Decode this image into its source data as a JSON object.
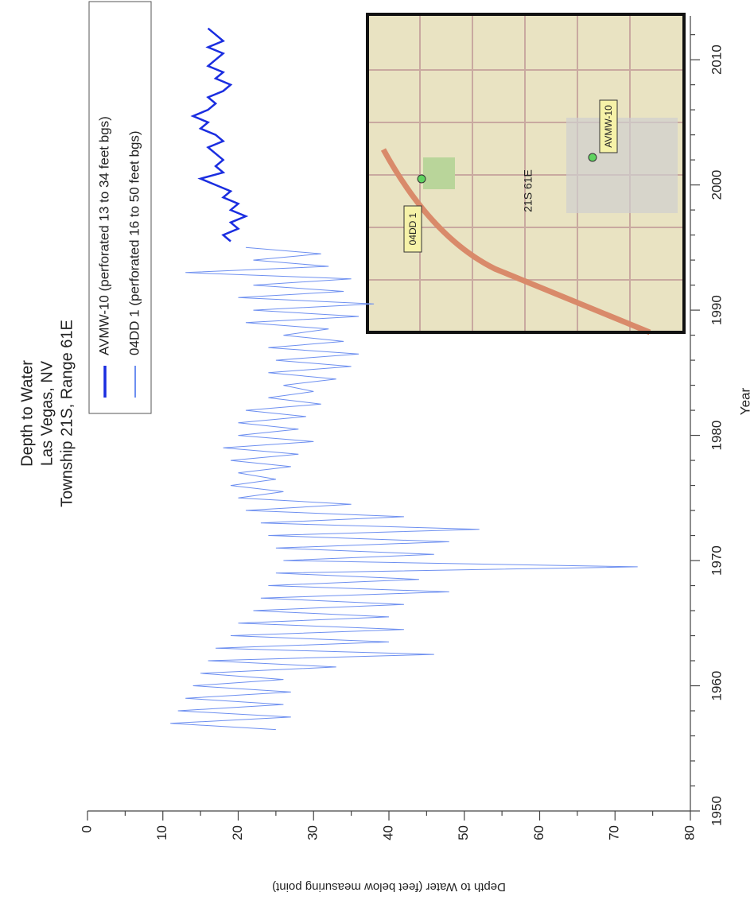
{
  "chart_data": {
    "type": "line",
    "title": [
      "Depth to Water",
      "Las Vegas, NV",
      "Township 21S, Range 61E"
    ],
    "xlabel": "Year",
    "ylabel": "Depth to Water (feet below measuring point)",
    "xlim": [
      1950,
      2013.5
    ],
    "xticks": [
      1950,
      1960,
      1970,
      1980,
      1990,
      2000,
      2010
    ],
    "xticks_minor": [
      1952,
      1954,
      1956,
      1958,
      1962,
      1964,
      1966,
      1968,
      1972,
      1974,
      1976,
      1978,
      1982,
      1984,
      1986,
      1988,
      1992,
      1994,
      1996,
      1998,
      2002,
      2004,
      2006,
      2008,
      2012
    ],
    "ylim": [
      0,
      80
    ],
    "yticks": [
      0,
      10,
      20,
      30,
      40,
      50,
      60,
      70,
      80
    ],
    "yticks_minor": [
      5,
      15,
      25,
      35,
      45,
      55,
      65,
      75
    ],
    "y_inverted": true,
    "series": [
      {
        "name": "AVMW-10 (perforated 13 to 34 feet bgs)",
        "color": "#1a2de0",
        "width": 2.5,
        "x": [
          1995.5,
          1996,
          1996.5,
          1997,
          1997.5,
          1998,
          1998.5,
          1999,
          1999.5,
          2000,
          2000.5,
          2001,
          2001.5,
          2002,
          2002.5,
          2003,
          2003.5,
          2004,
          2004.5,
          2005,
          2005.5,
          2006,
          2006.5,
          2007,
          2007.5,
          2008,
          2008.5,
          2009,
          2009.5,
          2010,
          2010.5,
          2011,
          2011.5,
          2012,
          2012.5
        ],
        "values": [
          19,
          18,
          20,
          19,
          21,
          19,
          20,
          18,
          19,
          17,
          15,
          18,
          17,
          18,
          17,
          16,
          18,
          17,
          15,
          16,
          14,
          16,
          17,
          16,
          18,
          19,
          17,
          18,
          16,
          17,
          18,
          16,
          18,
          17,
          16
        ]
      },
      {
        "name": "04DD 1 (perforated 16 to 50 feet bgs)",
        "color": "#6d8ff0",
        "width": 1,
        "x": [
          1956.5,
          1957,
          1957.5,
          1958,
          1958.5,
          1959,
          1959.5,
          1960,
          1960.5,
          1961,
          1961.5,
          1962,
          1962.5,
          1963,
          1963.5,
          1964,
          1964.5,
          1965,
          1965.5,
          1966,
          1966.5,
          1967,
          1967.5,
          1968,
          1968.5,
          1969,
          1969.5,
          1970,
          1970.5,
          1971,
          1971.5,
          1972,
          1972.5,
          1973,
          1973.5,
          1974,
          1974.5,
          1975,
          1975.5,
          1976,
          1976.5,
          1977,
          1977.5,
          1978,
          1978.5,
          1979,
          1979.5,
          1980,
          1980.5,
          1981,
          1981.5,
          1982,
          1982.5,
          1983,
          1983.5,
          1984,
          1984.5,
          1985,
          1985.5,
          1986,
          1986.5,
          1987,
          1987.5,
          1988,
          1988.5,
          1989,
          1989.5,
          1990,
          1990.5,
          1991,
          1991.5,
          1992,
          1992.5,
          1993,
          1993.5,
          1994,
          1994.5,
          1995
        ],
        "values": [
          25,
          11,
          27,
          12,
          26,
          13,
          27,
          14,
          26,
          15,
          33,
          16,
          46,
          17,
          40,
          19,
          42,
          20,
          40,
          22,
          42,
          23,
          48,
          24,
          44,
          25,
          73,
          26,
          46,
          25,
          48,
          24,
          52,
          23,
          42,
          21,
          35,
          20,
          26,
          19,
          25,
          20,
          27,
          19,
          28,
          18,
          30,
          20,
          28,
          20,
          29,
          21,
          31,
          24,
          30,
          26,
          33,
          24,
          35,
          25,
          36,
          24,
          34,
          26,
          32,
          21,
          36,
          22,
          38,
          20,
          34,
          22,
          35,
          13,
          32,
          22,
          31,
          21
        ]
      }
    ],
    "legend": "top-right",
    "inset_map": {
      "labels": [
        "21S 61E",
        "04DD 1",
        "AVMW-10"
      ]
    }
  }
}
